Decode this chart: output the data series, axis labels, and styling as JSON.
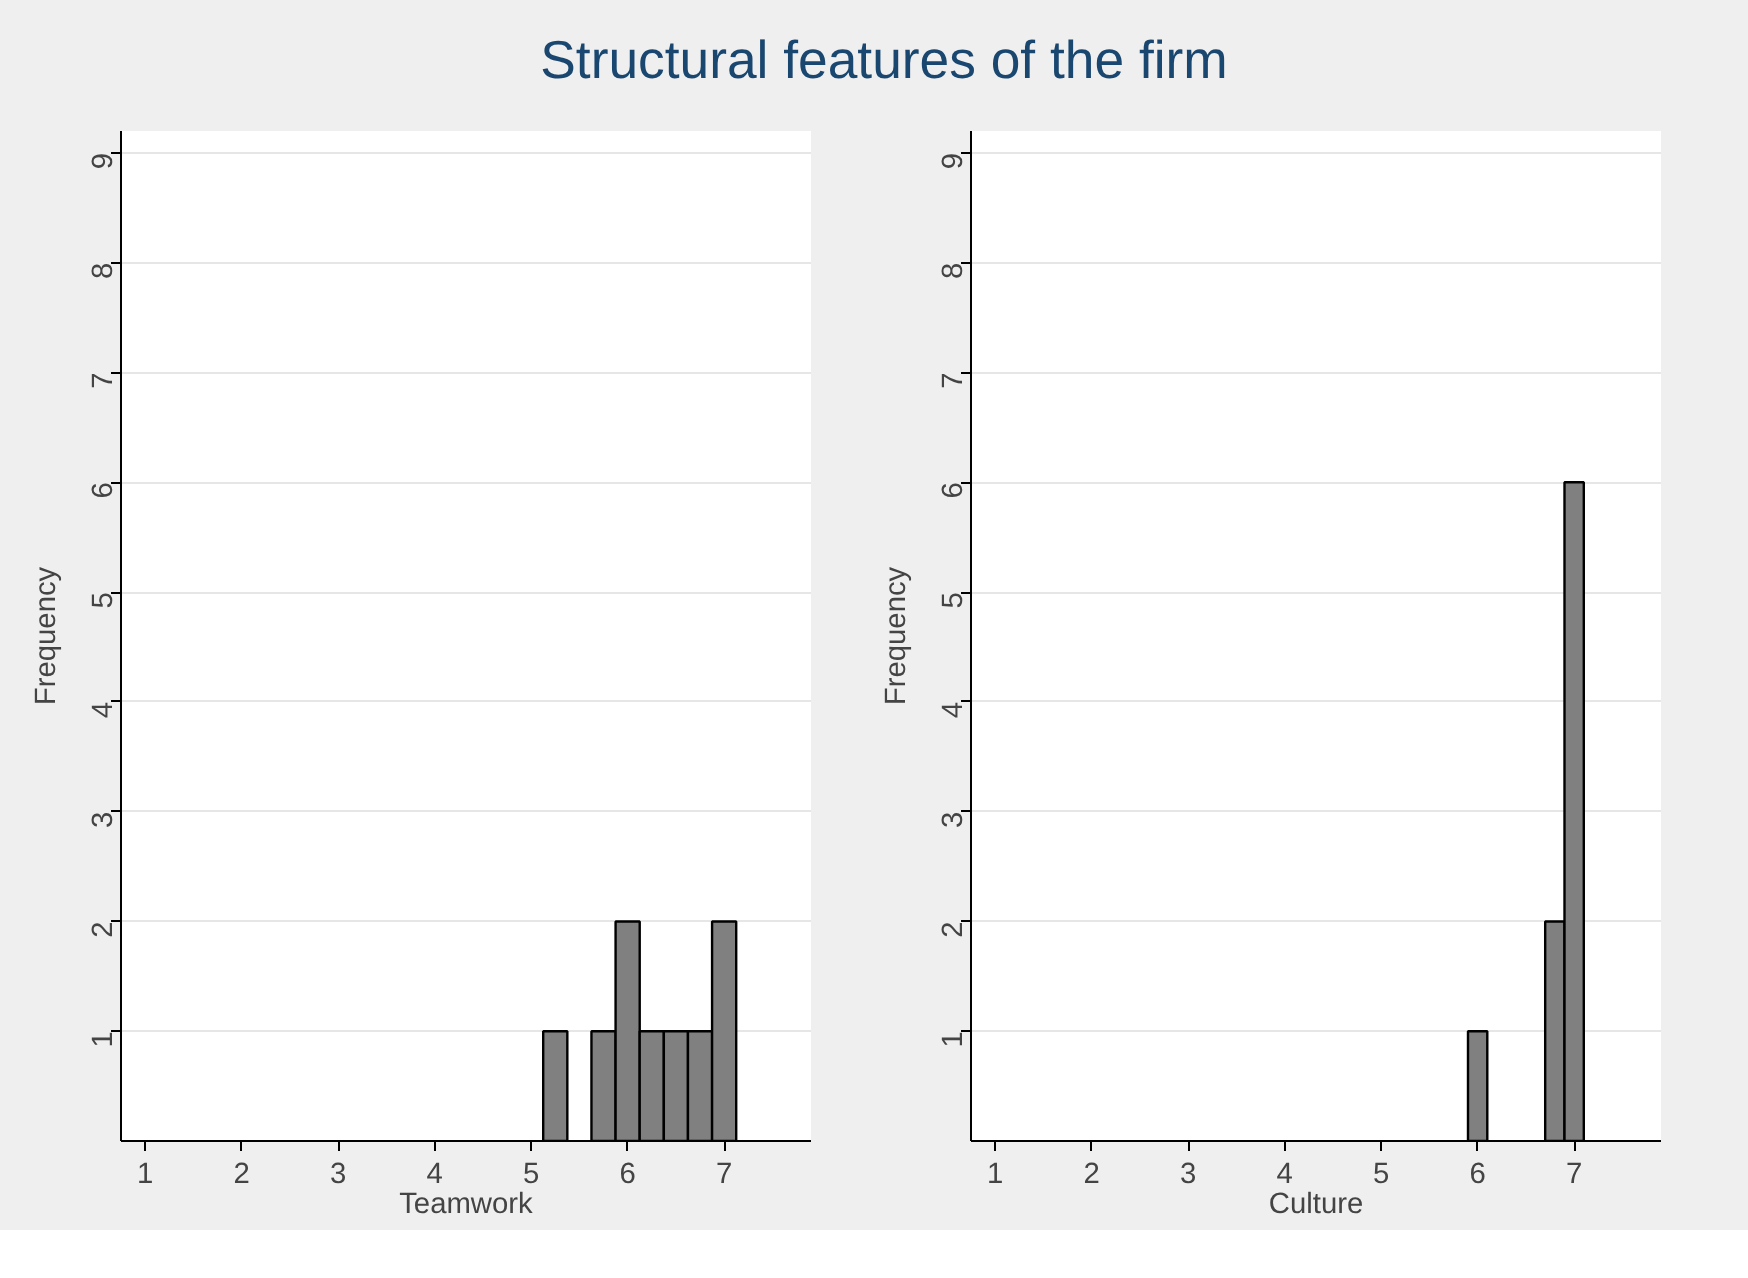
{
  "chart_data": [
    {
      "type": "histogram",
      "title": "Structural features of the firm",
      "xlabel": "Teamwork",
      "ylabel": "Frequency",
      "bins": [
        5.125,
        5.375,
        5.625,
        5.875,
        6.125,
        6.375,
        6.625,
        6.875,
        7.125
      ],
      "values": [
        1,
        0,
        1,
        2,
        1,
        1,
        1,
        2
      ],
      "color": "#808080",
      "xlim": [
        0.75,
        7.9
      ],
      "ylim": [
        0,
        9.2
      ],
      "xticks": [
        1,
        2,
        3,
        4,
        5,
        6,
        7
      ],
      "yticks": [
        1,
        2,
        3,
        4,
        5,
        6,
        7,
        8,
        9
      ],
      "grid": "y"
    },
    {
      "type": "histogram",
      "xlabel": "Culture",
      "ylabel": "Frequency",
      "bins": [
        5.9,
        6.1,
        6.3,
        6.5,
        6.7,
        6.9,
        7.1
      ],
      "values": [
        1,
        0,
        0,
        0,
        2,
        6
      ],
      "color": "#808080",
      "xlim": [
        0.75,
        7.9
      ],
      "ylim": [
        0,
        9.2
      ],
      "xticks": [
        1,
        2,
        3,
        4,
        5,
        6,
        7
      ],
      "yticks": [
        1,
        2,
        3,
        4,
        5,
        6,
        7,
        8,
        9
      ],
      "grid": "y"
    }
  ]
}
